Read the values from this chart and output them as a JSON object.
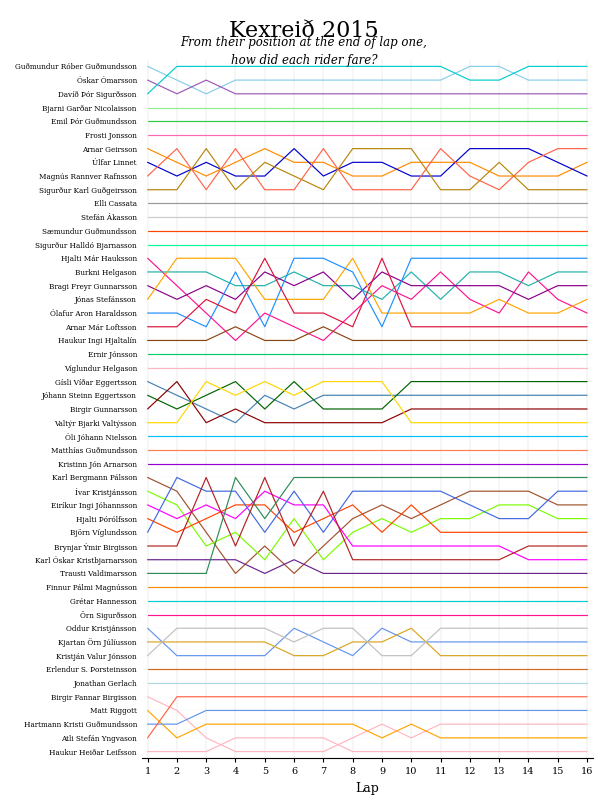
{
  "title": "Kexreið 2015",
  "subtitle": "From their position at the end of lap one,\nhow did each rider fare?",
  "xlabel": "Lap",
  "n_laps": 16,
  "n_riders": 51,
  "riders": [
    "Guðmundur Róber Guðmundsson",
    "Óskar Ómarsson",
    "Davíð Þór Sigurðsson",
    "Bjarni Garðar Nicolaisson",
    "Emil Þór Guðmundsson",
    "Frosti Jonsson",
    "Arnar Geirsson",
    "Úlfar Linnet",
    "Magnús Rannver Rafnsson",
    "Sigurður Karl Guðgeirsson",
    "Elli Cassata",
    "Stefán Ákasson",
    "Sæmundur Guðmundsson",
    "Sigurður Halldó Bjarnasson",
    "Hjalti Már Hauksson",
    "Burkni Helgason",
    "Bragi Freyr Gunnarsson",
    "Jónas Stefánsson",
    "Ólafur Aron Haraldsson",
    "Arnar Már Loftsson",
    "Haukur Ingi Hjaltalín",
    "Ernir Jónsson",
    "Víglundur Helgason",
    "Gísli Víðar Eggertsson",
    "Jóhann Steinn Eggertsson",
    "Birgir Gunnarsson",
    "Valtýr Bjarki Valtýsson",
    "Óli Jóhann Nielsson",
    "Matthías Guðmundsson",
    "Kristinn Jón Arnarson",
    "Karl Bergmann Pálsson",
    "Ívar Kristjánsson",
    "Eiríkur Ingi Jóhannsson",
    "Hjalti Þórólfsson",
    "Björn Víglundsson",
    "Brynjar Ýmir Birgisson",
    "Karl Óskar Kristbjarnarsson",
    "Trausti Valdimarsson",
    "Finnur Pálmi Magnússon",
    "Grétar Hannesson",
    "Örn Sigurðsson",
    "Oddur Kristjánsson",
    "Kjartan Örn Júlíusson",
    "Kristján Valur Jónsson",
    "Erlendur S. Þorsteinsson",
    "Jonathan Gerlach",
    "Birgir Fannar Birgisson",
    "Matt Riggott",
    "Hartmann Kristi Guðmundsson",
    "Atli Stefán Yngvason",
    "Haukur Heiðar Leifsson"
  ],
  "colors": [
    "#87CEEB",
    "#9B59B6",
    "#00CED1",
    "#90EE90",
    "#2ECC40",
    "#FF69B4",
    "#FF8C00",
    "#0000CD",
    "#FF6347",
    "#B8860B",
    "#999999",
    "#CCCCCC",
    "#FF4500",
    "#00FA9A",
    "#FF1493",
    "#20B2AA",
    "#8B008B",
    "#FFA500",
    "#1E90FF",
    "#DC143C",
    "#8B4513",
    "#00CD66",
    "#FFB6C1",
    "#4682B4",
    "#006400",
    "#8B0000",
    "#FFD700",
    "#00BFFF",
    "#FF7F50",
    "#9400D3",
    "#A0522D",
    "#7CFC00",
    "#FF00FF",
    "#FF4500",
    "#4169E1",
    "#B22222",
    "#6B238E",
    "#2E8B57",
    "#FF8C00",
    "#00CED1",
    "#FF1493",
    "#6495ED",
    "#DAA520",
    "#C0C0C0",
    "#D2691E",
    "#ADD8E6",
    "#FFB6C1",
    "#FFA500",
    "#6495ED",
    "#FF6347",
    "#FFB6C1"
  ],
  "positions": [
    [
      1,
      2,
      3,
      2,
      2,
      2,
      2,
      2,
      2,
      2,
      2,
      1,
      1,
      2,
      2,
      2
    ],
    [
      2,
      3,
      2,
      3,
      3,
      3,
      3,
      3,
      3,
      3,
      3,
      3,
      3,
      3,
      3,
      3
    ],
    [
      3,
      1,
      1,
      1,
      1,
      1,
      1,
      1,
      1,
      1,
      1,
      2,
      2,
      1,
      1,
      1
    ],
    [
      4,
      4,
      4,
      4,
      4,
      4,
      4,
      4,
      4,
      4,
      4,
      4,
      4,
      4,
      4,
      4
    ],
    [
      5,
      5,
      5,
      5,
      5,
      5,
      5,
      5,
      5,
      5,
      5,
      5,
      5,
      5,
      5,
      5
    ],
    [
      6,
      6,
      6,
      6,
      6,
      6,
      6,
      6,
      6,
      6,
      6,
      6,
      6,
      6,
      6,
      6
    ],
    [
      7,
      8,
      9,
      8,
      7,
      8,
      8,
      9,
      9,
      8,
      8,
      8,
      9,
      9,
      9,
      8
    ],
    [
      8,
      9,
      8,
      9,
      9,
      7,
      9,
      8,
      8,
      9,
      9,
      7,
      7,
      7,
      8,
      9
    ],
    [
      9,
      7,
      10,
      7,
      10,
      10,
      7,
      10,
      10,
      10,
      7,
      9,
      10,
      8,
      7,
      7
    ],
    [
      10,
      10,
      7,
      10,
      8,
      9,
      10,
      7,
      7,
      7,
      10,
      10,
      8,
      10,
      10,
      10
    ],
    [
      11,
      11,
      11,
      11,
      11,
      11,
      11,
      11,
      11,
      11,
      11,
      11,
      11,
      11,
      11,
      11
    ],
    [
      12,
      12,
      12,
      12,
      12,
      12,
      12,
      12,
      12,
      12,
      12,
      12,
      12,
      12,
      12,
      12
    ],
    [
      13,
      13,
      13,
      13,
      13,
      13,
      13,
      13,
      13,
      13,
      13,
      13,
      13,
      13,
      13,
      13
    ],
    [
      14,
      14,
      14,
      14,
      14,
      14,
      14,
      14,
      14,
      14,
      14,
      14,
      14,
      14,
      14,
      14
    ],
    [
      15,
      17,
      19,
      21,
      19,
      20,
      21,
      19,
      17,
      18,
      16,
      18,
      19,
      16,
      18,
      19
    ],
    [
      16,
      16,
      16,
      17,
      17,
      16,
      17,
      17,
      18,
      16,
      18,
      16,
      16,
      17,
      16,
      16
    ],
    [
      17,
      18,
      17,
      18,
      16,
      17,
      16,
      18,
      16,
      17,
      17,
      17,
      17,
      18,
      17,
      17
    ],
    [
      18,
      15,
      15,
      15,
      18,
      18,
      18,
      15,
      19,
      19,
      19,
      19,
      18,
      19,
      19,
      18
    ],
    [
      19,
      19,
      20,
      16,
      20,
      15,
      15,
      16,
      20,
      15,
      15,
      15,
      15,
      15,
      15,
      15
    ],
    [
      20,
      20,
      18,
      19,
      15,
      19,
      19,
      20,
      15,
      20,
      20,
      20,
      20,
      20,
      20,
      20
    ],
    [
      21,
      21,
      21,
      20,
      21,
      21,
      20,
      21,
      21,
      21,
      21,
      21,
      21,
      21,
      21,
      21
    ],
    [
      22,
      22,
      22,
      22,
      22,
      22,
      22,
      22,
      22,
      22,
      22,
      22,
      22,
      22,
      22,
      22
    ],
    [
      23,
      23,
      23,
      23,
      23,
      23,
      23,
      23,
      23,
      23,
      23,
      23,
      23,
      23,
      23,
      23
    ],
    [
      24,
      25,
      26,
      27,
      25,
      26,
      25,
      25,
      25,
      25,
      25,
      25,
      25,
      25,
      25,
      25
    ],
    [
      25,
      26,
      25,
      24,
      26,
      24,
      26,
      26,
      26,
      24,
      24,
      24,
      24,
      24,
      24,
      24
    ],
    [
      26,
      24,
      27,
      26,
      27,
      27,
      27,
      27,
      27,
      26,
      26,
      26,
      26,
      26,
      26,
      26
    ],
    [
      27,
      27,
      24,
      25,
      24,
      25,
      24,
      24,
      24,
      27,
      27,
      27,
      27,
      27,
      27,
      27
    ],
    [
      28,
      28,
      28,
      28,
      28,
      28,
      28,
      28,
      28,
      28,
      28,
      28,
      28,
      28,
      28,
      28
    ],
    [
      29,
      29,
      29,
      29,
      29,
      29,
      29,
      29,
      29,
      29,
      29,
      29,
      29,
      29,
      29,
      29
    ],
    [
      30,
      30,
      30,
      30,
      30,
      30,
      30,
      30,
      30,
      30,
      30,
      30,
      30,
      30,
      30,
      30
    ],
    [
      31,
      32,
      35,
      38,
      36,
      38,
      36,
      34,
      33,
      34,
      33,
      32,
      32,
      32,
      33,
      33
    ],
    [
      32,
      33,
      36,
      35,
      37,
      34,
      37,
      35,
      34,
      35,
      34,
      34,
      33,
      33,
      34,
      34
    ],
    [
      33,
      34,
      33,
      34,
      32,
      33,
      33,
      36,
      36,
      36,
      36,
      36,
      36,
      37,
      37,
      37
    ],
    [
      34,
      35,
      34,
      33,
      33,
      35,
      34,
      33,
      35,
      33,
      35,
      35,
      35,
      35,
      35,
      35
    ],
    [
      35,
      31,
      32,
      32,
      35,
      32,
      35,
      32,
      32,
      32,
      32,
      33,
      34,
      34,
      32,
      32
    ],
    [
      36,
      36,
      31,
      36,
      31,
      36,
      32,
      37,
      37,
      37,
      37,
      37,
      37,
      36,
      36,
      36
    ],
    [
      37,
      37,
      37,
      37,
      38,
      37,
      38,
      38,
      38,
      38,
      38,
      38,
      38,
      38,
      38,
      38
    ],
    [
      38,
      38,
      38,
      31,
      34,
      31,
      31,
      31,
      31,
      31,
      31,
      31,
      31,
      31,
      31,
      31
    ],
    [
      39,
      39,
      39,
      39,
      39,
      39,
      39,
      39,
      39,
      39,
      39,
      39,
      39,
      39,
      39,
      39
    ],
    [
      40,
      40,
      40,
      40,
      40,
      40,
      40,
      40,
      40,
      40,
      40,
      40,
      40,
      40,
      40,
      40
    ],
    [
      41,
      41,
      41,
      41,
      41,
      41,
      41,
      41,
      41,
      41,
      41,
      41,
      41,
      41,
      41,
      41
    ],
    [
      42,
      44,
      44,
      44,
      44,
      42,
      43,
      44,
      42,
      43,
      43,
      43,
      43,
      43,
      43,
      43
    ],
    [
      43,
      43,
      43,
      43,
      43,
      44,
      44,
      43,
      43,
      42,
      44,
      44,
      44,
      44,
      44,
      44
    ],
    [
      44,
      42,
      42,
      42,
      42,
      43,
      42,
      42,
      44,
      44,
      42,
      42,
      42,
      42,
      42,
      42
    ],
    [
      45,
      45,
      45,
      45,
      45,
      45,
      45,
      45,
      45,
      45,
      45,
      45,
      45,
      45,
      45,
      45
    ],
    [
      46,
      46,
      46,
      46,
      46,
      46,
      46,
      46,
      46,
      46,
      46,
      46,
      46,
      46,
      46,
      46
    ],
    [
      47,
      48,
      50,
      51,
      51,
      51,
      51,
      50,
      49,
      50,
      49,
      49,
      49,
      49,
      49,
      49
    ],
    [
      48,
      50,
      49,
      49,
      49,
      49,
      49,
      49,
      50,
      49,
      50,
      50,
      50,
      50,
      50,
      50
    ],
    [
      49,
      49,
      48,
      48,
      48,
      48,
      48,
      48,
      48,
      48,
      48,
      48,
      48,
      48,
      48,
      48
    ],
    [
      50,
      47,
      47,
      47,
      47,
      47,
      47,
      47,
      47,
      47,
      47,
      47,
      47,
      47,
      47,
      47
    ],
    [
      51,
      51,
      51,
      50,
      50,
      50,
      50,
      51,
      51,
      51,
      51,
      51,
      51,
      51,
      51,
      51
    ]
  ]
}
